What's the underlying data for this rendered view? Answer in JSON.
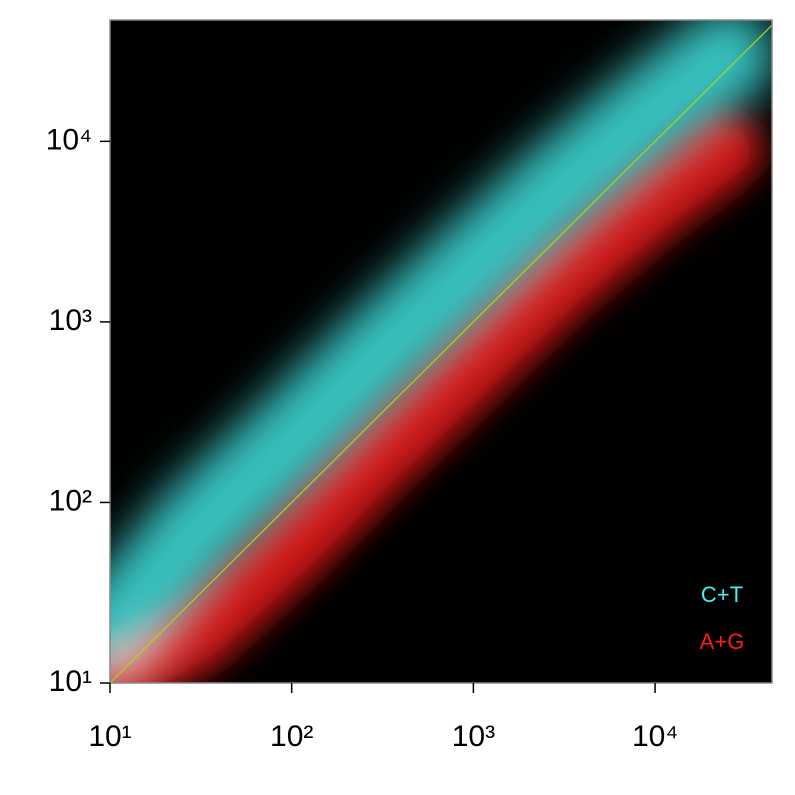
{
  "chart_data": {
    "type": "density",
    "xscale": "log",
    "yscale": "log",
    "xlim": [
      10,
      44000
    ],
    "ylim": [
      10,
      47000
    ],
    "xticks": [
      {
        "value": 10,
        "label": "10¹"
      },
      {
        "value": 100,
        "label": "10²"
      },
      {
        "value": 1000,
        "label": "10³"
      },
      {
        "value": 10000,
        "label": "10⁴"
      }
    ],
    "yticks": [
      {
        "value": 10,
        "label": "10¹"
      },
      {
        "value": 100,
        "label": "10²"
      },
      {
        "value": 1000,
        "label": "10³"
      },
      {
        "value": 10000,
        "label": "10⁴"
      }
    ],
    "background": "#000000",
    "diagonal": true,
    "diagonal_color": "#a6d61e",
    "legend": "lower right",
    "series": [
      {
        "name": "C+T",
        "color": "#45f0ee",
        "x": [
          10,
          30,
          100,
          300,
          1000,
          3000,
          10000,
          25000
        ],
        "values": [
          18,
          70,
          220,
          650,
          2000,
          5500,
          15000,
          30000
        ]
      },
      {
        "name": "A+G",
        "color": "#ff1a1a",
        "x": [
          10,
          30,
          100,
          300,
          1000,
          3000,
          10000,
          25000
        ],
        "values": [
          10,
          18,
          55,
          170,
          550,
          1600,
          4500,
          9000
        ]
      }
    ]
  }
}
